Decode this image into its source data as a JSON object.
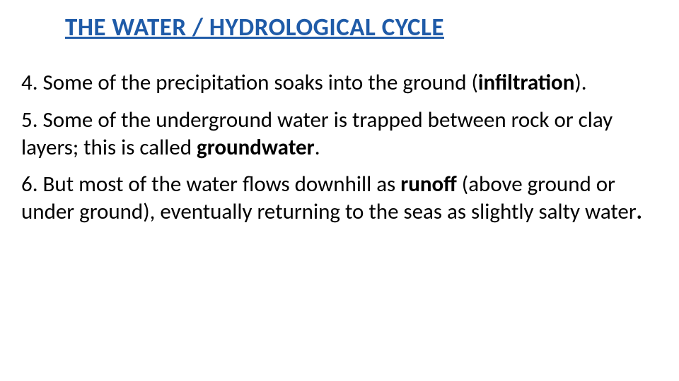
{
  "title": "THE WATER / HYDROLOGICAL CYCLE",
  "points": {
    "p4_a": "4. Some of the precipitation soaks into the ground (",
    "p4_b": "infiltration",
    "p4_c": ").",
    "p5_a": "5. Some of the underground water is trapped between rock or clay layers; this is called ",
    "p5_b": "groundwater",
    "p5_c": ".",
    "p6_a": "6. But most of the water flows downhill as ",
    "p6_b": "runoff",
    "p6_c": " (above ground or under ground), eventually returning to the seas as slightly salty water",
    "p6_d": "."
  },
  "colors": {
    "title": "#1f5ba8",
    "body": "#000000",
    "background": "#ffffff"
  },
  "typography": {
    "title_fontsize": 35,
    "body_fontsize": 31,
    "title_weight": "bold",
    "font_family": "Calibri"
  }
}
